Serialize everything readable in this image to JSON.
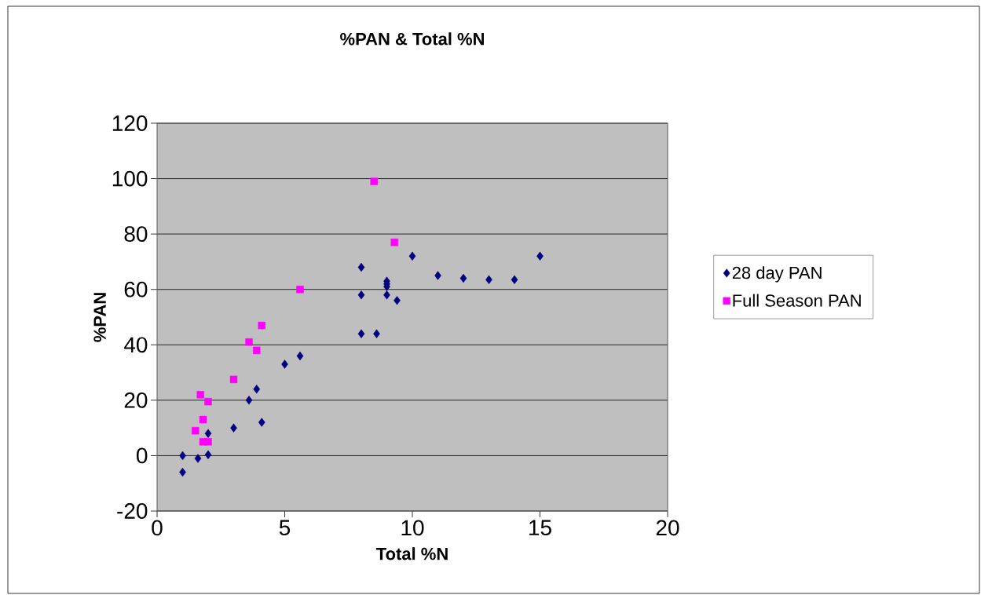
{
  "chart_data": {
    "type": "scatter",
    "title": "%PAN & Total %N",
    "xlabel": "Total %N",
    "ylabel": "%PAN",
    "xlim": [
      0,
      20
    ],
    "ylim": [
      -20,
      120
    ],
    "xticks": [
      0,
      5,
      10,
      15,
      20
    ],
    "yticks": [
      -20,
      0,
      20,
      40,
      60,
      80,
      100,
      120
    ],
    "grid": "y",
    "legend": "right",
    "series": [
      {
        "name": "28 day PAN",
        "color": "#000080",
        "marker": "diamond",
        "x": [
          1,
          1,
          1.6,
          2,
          2,
          3,
          3.6,
          3.9,
          4.1,
          5,
          5.6,
          8,
          8,
          8,
          8.6,
          9,
          9,
          9,
          9,
          9.4,
          10,
          11,
          12,
          13,
          14,
          15
        ],
        "values": [
          0,
          -6,
          -1,
          0.3,
          8,
          10,
          20,
          24,
          12,
          33,
          36,
          68,
          58,
          44,
          44,
          63,
          62,
          61,
          58,
          56,
          72,
          65,
          64,
          63.5,
          63.5,
          72
        ]
      },
      {
        "name": "Full Season PAN",
        "color": "#ff00ff",
        "marker": "square",
        "x": [
          1.5,
          1.7,
          1.8,
          2,
          2,
          1.8,
          3,
          3.6,
          3.9,
          4.1,
          5.6,
          8.5,
          9.3
        ],
        "values": [
          9,
          22,
          13,
          19.5,
          5,
          5,
          27.5,
          41,
          38,
          47,
          60,
          99,
          77
        ]
      }
    ]
  }
}
